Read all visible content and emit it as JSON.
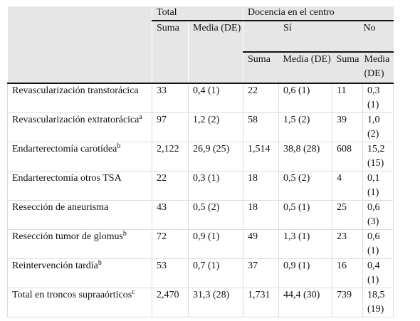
{
  "header": {
    "total": "Total",
    "docencia": "Docencia en el centro",
    "si": "Sí",
    "no": "No",
    "suma": "Suma",
    "media_de": "Media (DE)"
  },
  "rows": [
    {
      "label": "Revascularización transtorácica",
      "sup": "",
      "t_suma": "33",
      "t_media": "0,4 (1)",
      "si_suma": "22",
      "si_media": "0,6 (1)",
      "no_suma": "11",
      "no_media": "0,3 (1)"
    },
    {
      "label": "Revascularización extratorácica",
      "sup": "a",
      "t_suma": "97",
      "t_media": "1,2 (2)",
      "si_suma": "58",
      "si_media": "1,5 (2)",
      "no_suma": "39",
      "no_media": "1,0 (2)"
    },
    {
      "label": "Endarterectomía carotídea",
      "sup": "b",
      "t_suma": "2,122",
      "t_media": "26,9 (25)",
      "si_suma": "1,514",
      "si_media": "38,8 (28)",
      "no_suma": "608",
      "no_media": "15,2 (15)"
    },
    {
      "label": "Endarterectomía otros TSA",
      "sup": "",
      "t_suma": "22",
      "t_media": "0,3 (1)",
      "si_suma": "18",
      "si_media": "0,5 (2)",
      "no_suma": "4",
      "no_media": "0,1 (1)"
    },
    {
      "label": "Resección de aneurisma",
      "sup": "",
      "t_suma": "43",
      "t_media": "0,5 (2)",
      "si_suma": "18",
      "si_media": "0,5 (1)",
      "no_suma": "25",
      "no_media": "0,6 (3)"
    },
    {
      "label": "Resección tumor de glomus",
      "sup": "b",
      "t_suma": "72",
      "t_media": "0,9 (1)",
      "si_suma": "49",
      "si_media": "1,3 (1)",
      "no_suma": "23",
      "no_media": "0,6 (1)"
    },
    {
      "label": "Reintervención tardía",
      "sup": "b",
      "t_suma": "53",
      "t_media": "0,7 (1)",
      "si_suma": "37",
      "si_media": "0,9 (1)",
      "no_suma": "16",
      "no_media": "0,4 (1)"
    },
    {
      "label": "Total en troncos supraaórticos",
      "sup": "c",
      "t_suma": "2,470",
      "t_media": "31,3 (28)",
      "si_suma": "1,731",
      "si_media": "44,4 (30)",
      "no_suma": "739",
      "no_media": "18,5 (19)"
    }
  ]
}
